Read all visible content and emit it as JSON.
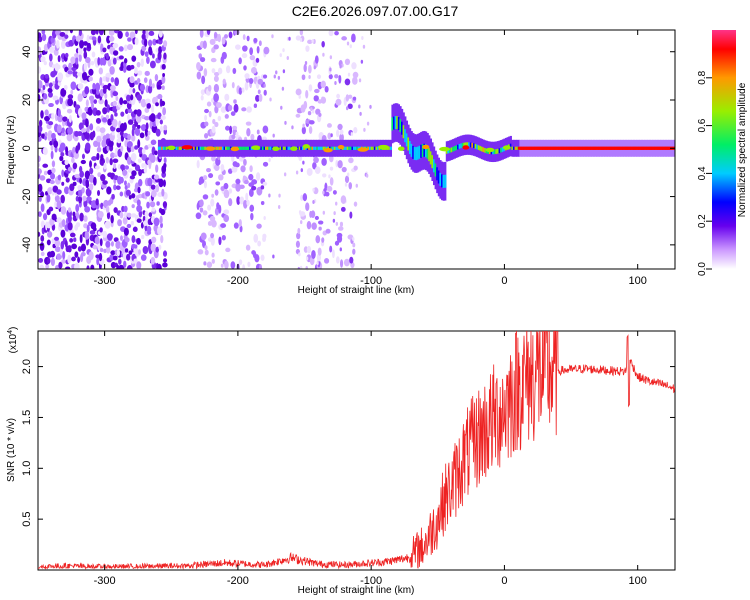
{
  "title": "C2E6.2026.097.07.00.G17",
  "chart_data": [
    {
      "type": "heatmap",
      "xlabel": "Height of straight line (km)",
      "ylabel": "Frequency (Hz)",
      "xlim": [
        -350,
        128
      ],
      "ylim": [
        -50,
        49
      ],
      "xticks": [
        -300,
        -200,
        -100,
        0,
        100
      ],
      "yticks": [
        -40,
        -20,
        0,
        20,
        40
      ],
      "noise_regions": [
        [
          -350,
          -255
        ],
        [
          -230,
          -180
        ],
        [
          -155,
          -112
        ]
      ],
      "ridge": {
        "description": "spectral ridge near 0 Hz",
        "x_start": -260,
        "x_end": 128,
        "disturbance_x": [
          -85,
          -45
        ],
        "disturbance_freq_range": [
          -13,
          13
        ]
      },
      "colorbar": {
        "label": "Normalized spectral amplitude",
        "ticks": [
          "0.0",
          "0.2",
          "0.4",
          "0.6",
          "0.8"
        ],
        "range": [
          0,
          1
        ]
      }
    },
    {
      "type": "line",
      "xlabel": "Height of straight line (km)",
      "ylabel": "SNR (10 * v/v)",
      "y_scale_label": "(x10",
      "y_scale_exp": "4",
      "xlim": [
        -350,
        128
      ],
      "ylim": [
        0,
        23500
      ],
      "xticks": [
        -300,
        -200,
        -100,
        0,
        100
      ],
      "yticks": [
        "0.5",
        "1.0",
        "1.5",
        "2.0"
      ],
      "ytick_values": [
        5000,
        10000,
        15000,
        20000
      ],
      "series": [
        {
          "name": "SNR",
          "color": "#ee2222",
          "x": [
            -350,
            -330,
            -300,
            -270,
            -240,
            -210,
            -180,
            -160,
            -150,
            -140,
            -120,
            -100,
            -90,
            -80,
            -70,
            -60,
            -50,
            -45,
            -40,
            -35,
            -30,
            -20,
            -10,
            0,
            10,
            20,
            30,
            40,
            50,
            60,
            70,
            80,
            90,
            95,
            100,
            110,
            120,
            128
          ],
          "y": [
            300,
            400,
            300,
            350,
            400,
            700,
            500,
            1200,
            900,
            600,
            500,
            700,
            800,
            1000,
            1300,
            2500,
            5000,
            7000,
            8000,
            9500,
            11000,
            13000,
            14500,
            16000,
            18000,
            19000,
            19500,
            19600,
            19700,
            19800,
            19700,
            19600,
            19500,
            20500,
            19000,
            18500,
            18200,
            17800
          ]
        }
      ]
    }
  ]
}
